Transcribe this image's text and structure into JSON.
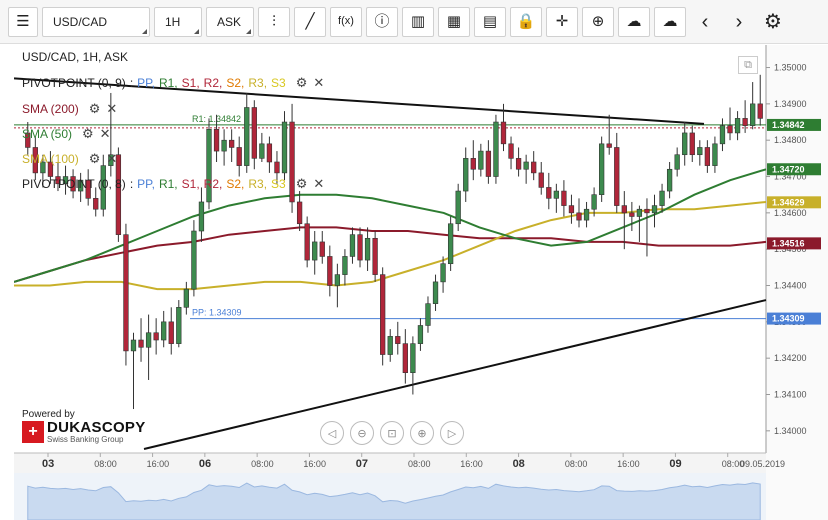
{
  "toolbar": {
    "menu_icon": "hamburger-icon",
    "instrument": "USD/CAD",
    "period": "1H",
    "side": "ASK",
    "buttons": [
      {
        "name": "chart-type-icon",
        "glyph": "⫶"
      },
      {
        "name": "draw-line-icon",
        "glyph": "╱"
      },
      {
        "name": "function-icon",
        "glyph": "f(x)"
      },
      {
        "name": "info-icon",
        "glyph": "ⓘ"
      },
      {
        "name": "indicator-bars-icon",
        "glyph": "▥"
      },
      {
        "name": "calendar-icon",
        "glyph": "▦"
      },
      {
        "name": "news-icon",
        "glyph": "▤"
      },
      {
        "name": "lock-icon",
        "glyph": "🔒"
      },
      {
        "name": "crosshair-icon",
        "glyph": "✛"
      },
      {
        "name": "zoom-icon",
        "glyph": "⊕"
      },
      {
        "name": "upload-icon",
        "glyph": "☁"
      },
      {
        "name": "download-icon",
        "glyph": "☁"
      },
      {
        "name": "prev-icon",
        "glyph": "‹"
      },
      {
        "name": "next-icon",
        "glyph": "›"
      },
      {
        "name": "settings-icon",
        "glyph": "⚙"
      }
    ]
  },
  "legend": {
    "title": "USD/CAD, 1H, ASK",
    "pivot1": {
      "label": "PIVOTPOINT (0, 9)",
      "sep": ":",
      "items": [
        "PP,",
        "R1,",
        "S1,",
        "R2,",
        "S2,",
        "R3,",
        "S3"
      ]
    },
    "sma200": "SMA (200)",
    "sma50": "SMA (50)",
    "sma100": "SMA (100)",
    "pivot2": {
      "label": "PIVOTPOINT (0, 8)",
      "sep": ":",
      "items": [
        "PP,",
        "R1,",
        "S1,",
        "R2,",
        "S2,",
        "R3,",
        "S3"
      ]
    }
  },
  "colors": {
    "up": "#3d8a4e",
    "down": "#b0263a",
    "sma200": "#8b1a2b",
    "sma50": "#2e7d32",
    "sma100": "#c8b02a",
    "pp": "#4a7fd6",
    "r1": "#2e7d32",
    "s1": "#b0263a",
    "r2": "#b0263a",
    "s2": "#e07a00",
    "r3": "#c8b02a",
    "s3": "#d8c820",
    "trend": "#111111"
  },
  "lines": {
    "r1_label": "R1: 1.34842",
    "pp_label": "PP: 1.34309"
  },
  "price_tags": [
    {
      "value": "1.34842",
      "price": 1.34842,
      "color": "#2e7d32"
    },
    {
      "value": "1.34720",
      "price": 1.3472,
      "color": "#2e7d32"
    },
    {
      "value": "1.34629",
      "price": 1.34629,
      "color": "#c8b02a"
    },
    {
      "value": "1.34516",
      "price": 1.34516,
      "color": "#8b1a2b"
    },
    {
      "value": "1.34309",
      "price": 1.34309,
      "color": "#4a7fd6"
    }
  ],
  "powered_by": "Powered by",
  "brand": {
    "name": "DUKASCOPY",
    "sub": "Swiss Banking Group"
  },
  "chart_data": {
    "type": "candlestick",
    "title": "USD/CAD, 1H, ASK",
    "ylim": [
      1.3395,
      1.3504
    ],
    "y_ticks": [
      1.34,
      1.341,
      1.342,
      1.343,
      1.344,
      1.345,
      1.346,
      1.347,
      1.348,
      1.349,
      1.35
    ],
    "y_tick_labels": [
      "1.34000",
      "1.34100",
      "1.34200",
      "1.34300",
      "1.34400",
      "1.34500",
      "1.34600",
      "1.34700",
      "1.34800",
      "1.34900",
      "1.35000"
    ],
    "x_labels": [
      {
        "label": "03",
        "bold": true
      },
      {
        "label": "08:00"
      },
      {
        "label": "16:00"
      },
      {
        "label": "06",
        "bold": true
      },
      {
        "label": "08:00"
      },
      {
        "label": "16:00"
      },
      {
        "label": "07",
        "bold": true
      },
      {
        "label": "08:00"
      },
      {
        "label": "16:00"
      },
      {
        "label": "08",
        "bold": true
      },
      {
        "label": "08:00"
      },
      {
        "label": "16:00"
      },
      {
        "label": "09",
        "bold": true
      },
      {
        "label": "08:00"
      },
      {
        "label": "09.05.2019"
      }
    ],
    "candles": [
      [
        1.3482,
        1.3485,
        1.3476,
        1.3478
      ],
      [
        1.3478,
        1.3481,
        1.3469,
        1.3471
      ],
      [
        1.3471,
        1.3476,
        1.3467,
        1.3474
      ],
      [
        1.3474,
        1.3477,
        1.3468,
        1.347
      ],
      [
        1.347,
        1.3474,
        1.3466,
        1.3468
      ],
      [
        1.3468,
        1.3473,
        1.3465,
        1.347
      ],
      [
        1.347,
        1.3472,
        1.3464,
        1.3466
      ],
      [
        1.3466,
        1.3471,
        1.3463,
        1.3469
      ],
      [
        1.3469,
        1.3472,
        1.3462,
        1.3464
      ],
      [
        1.3464,
        1.3467,
        1.3459,
        1.3461
      ],
      [
        1.3461,
        1.3476,
        1.3459,
        1.3473
      ],
      [
        1.3473,
        1.3493,
        1.347,
        1.3476
      ],
      [
        1.3476,
        1.3478,
        1.3452,
        1.3454
      ],
      [
        1.3454,
        1.3457,
        1.3418,
        1.3422
      ],
      [
        1.3422,
        1.3427,
        1.3406,
        1.3425
      ],
      [
        1.3425,
        1.3431,
        1.3419,
        1.3423
      ],
      [
        1.3423,
        1.3432,
        1.3414,
        1.3427
      ],
      [
        1.3427,
        1.3431,
        1.3421,
        1.3425
      ],
      [
        1.3425,
        1.3433,
        1.3423,
        1.343
      ],
      [
        1.343,
        1.3434,
        1.3421,
        1.3424
      ],
      [
        1.3424,
        1.3436,
        1.3423,
        1.3434
      ],
      [
        1.3434,
        1.3441,
        1.3432,
        1.3439
      ],
      [
        1.3439,
        1.3458,
        1.3437,
        1.3455
      ],
      [
        1.3455,
        1.3467,
        1.3452,
        1.3463
      ],
      [
        1.3463,
        1.3486,
        1.3461,
        1.3483
      ],
      [
        1.3483,
        1.3487,
        1.3474,
        1.3477
      ],
      [
        1.3477,
        1.3483,
        1.3473,
        1.348
      ],
      [
        1.348,
        1.3483,
        1.3474,
        1.3478
      ],
      [
        1.3478,
        1.3481,
        1.347,
        1.3473
      ],
      [
        1.3473,
        1.3493,
        1.3471,
        1.3489
      ],
      [
        1.3489,
        1.3491,
        1.3472,
        1.3475
      ],
      [
        1.3475,
        1.3482,
        1.3474,
        1.3479
      ],
      [
        1.3479,
        1.3481,
        1.3471,
        1.3474
      ],
      [
        1.3474,
        1.3477,
        1.3468,
        1.3471
      ],
      [
        1.3471,
        1.3488,
        1.3469,
        1.3485
      ],
      [
        1.3485,
        1.349,
        1.346,
        1.3463
      ],
      [
        1.3463,
        1.3466,
        1.3455,
        1.3457
      ],
      [
        1.3457,
        1.3459,
        1.3445,
        1.3447
      ],
      [
        1.3447,
        1.3455,
        1.3443,
        1.3452
      ],
      [
        1.3452,
        1.3455,
        1.3446,
        1.3448
      ],
      [
        1.3448,
        1.3451,
        1.3437,
        1.344
      ],
      [
        1.344,
        1.3446,
        1.3434,
        1.3443
      ],
      [
        1.3443,
        1.345,
        1.344,
        1.3448
      ],
      [
        1.3448,
        1.3456,
        1.3446,
        1.3454
      ],
      [
        1.3454,
        1.3456,
        1.3445,
        1.3447
      ],
      [
        1.3447,
        1.3456,
        1.3444,
        1.3453
      ],
      [
        1.3453,
        1.3455,
        1.3441,
        1.3443
      ],
      [
        1.3443,
        1.3445,
        1.3418,
        1.3421
      ],
      [
        1.3421,
        1.3428,
        1.3419,
        1.3426
      ],
      [
        1.3426,
        1.343,
        1.3421,
        1.3424
      ],
      [
        1.3424,
        1.3428,
        1.3413,
        1.3416
      ],
      [
        1.3416,
        1.3426,
        1.341,
        1.3424
      ],
      [
        1.3424,
        1.3431,
        1.3422,
        1.3429
      ],
      [
        1.3429,
        1.3437,
        1.3427,
        1.3435
      ],
      [
        1.3435,
        1.3443,
        1.3433,
        1.3441
      ],
      [
        1.3441,
        1.3448,
        1.3438,
        1.3446
      ],
      [
        1.3446,
        1.3459,
        1.3444,
        1.3457
      ],
      [
        1.3457,
        1.3468,
        1.3455,
        1.3466
      ],
      [
        1.3466,
        1.3478,
        1.3463,
        1.3475
      ],
      [
        1.3475,
        1.348,
        1.3469,
        1.3472
      ],
      [
        1.3472,
        1.3479,
        1.347,
        1.3477
      ],
      [
        1.3477,
        1.348,
        1.3468,
        1.347
      ],
      [
        1.347,
        1.3487,
        1.3468,
        1.3485
      ],
      [
        1.3485,
        1.349,
        1.3477,
        1.3479
      ],
      [
        1.3479,
        1.3481,
        1.3472,
        1.3475
      ],
      [
        1.3475,
        1.3478,
        1.347,
        1.3472
      ],
      [
        1.3472,
        1.3476,
        1.3468,
        1.3474
      ],
      [
        1.3474,
        1.3477,
        1.3469,
        1.3471
      ],
      [
        1.3471,
        1.3474,
        1.3465,
        1.3467
      ],
      [
        1.3467,
        1.3471,
        1.3461,
        1.3464
      ],
      [
        1.3464,
        1.3468,
        1.346,
        1.3466
      ],
      [
        1.3466,
        1.3469,
        1.3459,
        1.3462
      ],
      [
        1.3462,
        1.3465,
        1.3457,
        1.346
      ],
      [
        1.346,
        1.3464,
        1.3456,
        1.3458
      ],
      [
        1.3458,
        1.3463,
        1.3456,
        1.3461
      ],
      [
        1.3461,
        1.3467,
        1.3459,
        1.3465
      ],
      [
        1.3465,
        1.3481,
        1.3463,
        1.3479
      ],
      [
        1.3479,
        1.3487,
        1.3476,
        1.3478
      ],
      [
        1.3478,
        1.3482,
        1.346,
        1.3462
      ],
      [
        1.3462,
        1.3466,
        1.345,
        1.346
      ],
      [
        1.346,
        1.3463,
        1.3455,
        1.3459
      ],
      [
        1.3459,
        1.3462,
        1.3452,
        1.3461
      ],
      [
        1.3461,
        1.3464,
        1.3448,
        1.346
      ],
      [
        1.346,
        1.3465,
        1.3456,
        1.3462
      ],
      [
        1.3462,
        1.3468,
        1.346,
        1.3466
      ],
      [
        1.3466,
        1.3474,
        1.3464,
        1.3472
      ],
      [
        1.3472,
        1.3478,
        1.347,
        1.3476
      ],
      [
        1.3476,
        1.3485,
        1.3473,
        1.3482
      ],
      [
        1.3482,
        1.3484,
        1.3474,
        1.3476
      ],
      [
        1.3476,
        1.348,
        1.3473,
        1.3478
      ],
      [
        1.3478,
        1.348,
        1.3471,
        1.3473
      ],
      [
        1.3473,
        1.3481,
        1.3471,
        1.3479
      ],
      [
        1.3479,
        1.3486,
        1.3477,
        1.3484
      ],
      [
        1.3484,
        1.3489,
        1.348,
        1.3482
      ],
      [
        1.3482,
        1.3488,
        1.348,
        1.3486
      ],
      [
        1.3486,
        1.3491,
        1.3482,
        1.3484
      ],
      [
        1.3484,
        1.3496,
        1.3483,
        1.349
      ],
      [
        1.349,
        1.3498,
        1.3484,
        1.3486
      ]
    ],
    "sma50": [
      1.3441,
      1.3444,
      1.3447,
      1.3451,
      1.3455,
      1.3459,
      1.3462,
      1.3464,
      1.3465,
      1.3465,
      1.3464,
      1.3462,
      1.346,
      1.3456,
      1.3453,
      1.3451,
      1.3452,
      1.3456,
      1.346,
      1.3465,
      1.3469,
      1.3472
    ],
    "sma100": [
      1.344,
      1.344,
      1.3441,
      1.3441,
      1.3439,
      1.3439,
      1.344,
      1.3441,
      1.3441,
      1.344,
      1.3441,
      1.3444,
      1.3447,
      1.3451,
      1.3455,
      1.3458,
      1.346,
      1.346,
      1.3461,
      1.3461,
      1.3462,
      1.3463
    ],
    "sma200": [
      1.3441,
      1.3444,
      1.3447,
      1.3449,
      1.3451,
      1.3452,
      1.3454,
      1.3455,
      1.3456,
      1.3456,
      1.3455,
      1.3455,
      1.3454,
      1.3453,
      1.3453,
      1.3453,
      1.3452,
      1.3452,
      1.3451,
      1.3451,
      1.3451,
      1.3452
    ],
    "r1": 1.34842,
    "pp": 1.34309
  }
}
